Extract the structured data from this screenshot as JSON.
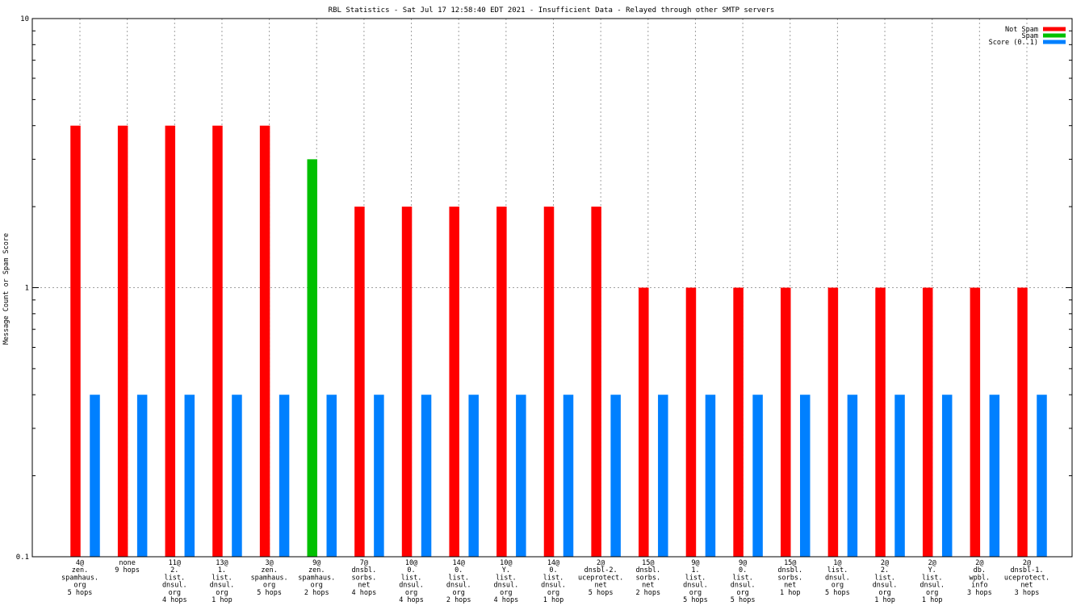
{
  "chart_data": {
    "type": "bar",
    "title": "RBL Statistics - Sat Jul 17 12:58:40 EDT 2021 - Insufficient Data - Relayed through other SMTP servers",
    "xlabel": "",
    "ylabel": "Message Count or Spam Score",
    "y_scale": "log",
    "ylim": [
      0.1,
      10
    ],
    "y_ticks": [
      "0.1",
      "1",
      "10"
    ],
    "grid": true,
    "legend_position": "top-right",
    "categories": [
      [
        "4@",
        "zen.",
        "spamhaus.",
        "org",
        "5 hops"
      ],
      [
        "none",
        "9 hops"
      ],
      [
        "11@",
        "2.",
        "list.",
        "dnsul.",
        "org",
        "4 hops"
      ],
      [
        "13@",
        "1.",
        "list.",
        "dnsul.",
        "org",
        "1 hop"
      ],
      [
        "3@",
        "zen.",
        "spamhaus.",
        "org",
        "5 hops"
      ],
      [
        "9@",
        "zen.",
        "spamhaus.",
        "org",
        "2 hops"
      ],
      [
        "7@",
        "dnsbl.",
        "sorbs.",
        "net",
        "4 hops"
      ],
      [
        "10@",
        "0.",
        "list.",
        "dnsul.",
        "org",
        "4 hops"
      ],
      [
        "14@",
        "0.",
        "list.",
        "dnsul.",
        "org",
        "2 hops"
      ],
      [
        "10@",
        "Y.",
        "list.",
        "dnsul.",
        "org",
        "4 hops"
      ],
      [
        "14@",
        "0.",
        "list.",
        "dnsul.",
        "org",
        "1 hop"
      ],
      [
        "2@",
        "dnsbl-2.",
        "uceprotect.",
        "net",
        "5 hops"
      ],
      [
        "15@",
        "dnsbl.",
        "sorbs.",
        "net",
        "2 hops"
      ],
      [
        "9@",
        "1.",
        "list.",
        "dnsul.",
        "org",
        "5 hops"
      ],
      [
        "9@",
        "0.",
        "list.",
        "dnsul.",
        "org",
        "5 hops"
      ],
      [
        "15@",
        "dnsbl.",
        "sorbs.",
        "net",
        "1 hop"
      ],
      [
        "1@",
        "list.",
        "dnsul.",
        "org",
        "5 hops"
      ],
      [
        "2@",
        "2.",
        "list.",
        "dnsul.",
        "org",
        "1 hop"
      ],
      [
        "2@",
        "Y.",
        "list.",
        "dnsul.",
        "org",
        "1 hop"
      ],
      [
        "2@",
        "db.",
        "wpbl.",
        "info",
        "3 hops"
      ],
      [
        "2@",
        "dnsbl-1.",
        "uceprotect.",
        "net",
        "3 hops"
      ]
    ],
    "series": [
      {
        "name": "Not Spam",
        "color": "#ff0000",
        "values": [
          4,
          4,
          4,
          4,
          4,
          0,
          2,
          2,
          2,
          2,
          2,
          2,
          1,
          1,
          1,
          1,
          1,
          1,
          1,
          1,
          1
        ]
      },
      {
        "name": "Spam",
        "color": "#00c000",
        "values": [
          0,
          0,
          0,
          0,
          0,
          3,
          0,
          0,
          0,
          0,
          0,
          0,
          0,
          0,
          0,
          0,
          0,
          0,
          0,
          0,
          0
        ]
      },
      {
        "name": "Score (0..1)",
        "color": "#0080ff",
        "values": [
          0.4,
          0.4,
          0.4,
          0.4,
          0.4,
          0.4,
          0.4,
          0.4,
          0.4,
          0.4,
          0.4,
          0.4,
          0.4,
          0.4,
          0.4,
          0.4,
          0.4,
          0.4,
          0.4,
          0.4,
          0.4
        ]
      }
    ]
  }
}
